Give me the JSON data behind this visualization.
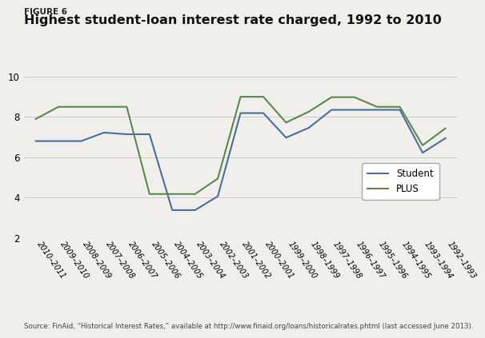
{
  "figure_label": "FIGURE 6",
  "title": "Highest student-loan interest rate charged, 1992 to 2010",
  "source": "Source: FinAid, “Historical Interest Rates,” available at http://www.finaid.org/loans/historicalrates.phtml (last accessed June 2013).",
  "x_labels": [
    "2010–2011",
    "2009–2010",
    "2008–2009",
    "2007–2008",
    "2006–2007",
    "2005–2006",
    "2004–2005",
    "2003–2004",
    "2002–2003",
    "2001–2002",
    "2000–2001",
    "1999–2000",
    "1998–1999",
    "1997–1998",
    "1996–1997",
    "1995–1996",
    "1994–1995",
    "1993–1994",
    "1992–1993"
  ],
  "student_values": [
    6.8,
    6.8,
    6.8,
    7.22,
    7.14,
    7.14,
    3.37,
    3.37,
    4.06,
    8.19,
    8.19,
    6.97,
    7.46,
    8.35,
    8.35,
    8.35,
    8.35,
    6.22,
    6.94
  ],
  "plus_values": [
    7.9,
    8.5,
    8.5,
    8.5,
    8.5,
    4.17,
    4.17,
    4.17,
    4.94,
    9.0,
    9.0,
    7.72,
    8.26,
    8.98,
    8.98,
    8.5,
    8.5,
    6.59,
    7.43
  ],
  "student_color": "#4a6f9c",
  "plus_color": "#5a8a4a",
  "ylim": [
    2,
    10
  ],
  "yticks": [
    2,
    4,
    6,
    8,
    10
  ],
  "background_color": "#f0efeb",
  "plot_bg_color": "#f0efeb",
  "grid_color": "#cccccc",
  "legend_labels": [
    "Student",
    "PLUS"
  ]
}
